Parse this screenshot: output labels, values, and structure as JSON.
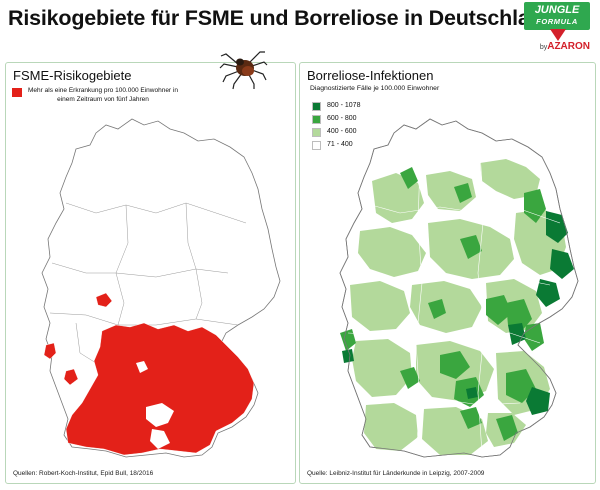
{
  "title": "Risikogebiete für FSME und Borreliose in Deutschland",
  "brand": {
    "line1": "JUNGLE",
    "line2": "FORMULA",
    "by": "by",
    "company": "AZARON"
  },
  "icons": {
    "tick": "tick-icon",
    "brand_mark": "triangle-mark-icon"
  },
  "colors": {
    "fsme_red": "#e32119",
    "brand_green": "#2fa84f",
    "brand_red": "#d3202a",
    "class_800_1078": "#0a7a34",
    "class_600_800": "#3aa63f",
    "class_400_600": "#b3d99b",
    "class_71_400": "#ffffff"
  },
  "fsme_panel": {
    "title": "FSME-Risikogebiete",
    "legend_label": "Mehr als eine Erkrankung pro 100.000 Einwohner in einem Zeitraum von fünf Jahren",
    "source": "Quellen: Robert-Koch-Institut, Epid Bull, 18/2016"
  },
  "borreliose_panel": {
    "title": "Borreliose-Infektionen",
    "subtitle": "Diagnostizierte Fälle je 100.000 Einwohner",
    "legend": [
      {
        "label": "800 - 1078",
        "color": "#0a7a34"
      },
      {
        "label": "600 - 800",
        "color": "#3aa63f"
      },
      {
        "label": "400 - 600",
        "color": "#b3d99b"
      },
      {
        "label": "71 - 400",
        "color": "#ffffff"
      }
    ],
    "source": "Quelle: Leibniz-Institut für Länderkunde in Leipzig, 2007-2009"
  }
}
